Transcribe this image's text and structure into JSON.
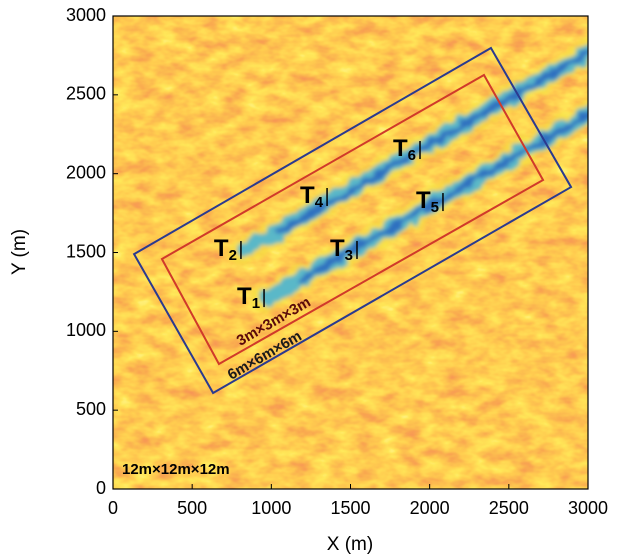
{
  "chart_data": {
    "type": "field-map",
    "xlabel": "X (m)",
    "ylabel": "Y (m)",
    "xlim": [
      0,
      3000
    ],
    "ylim": [
      0,
      3000
    ],
    "xticks": [
      0,
      500,
      1000,
      1500,
      2000,
      2500,
      3000
    ],
    "yticks": [
      0,
      500,
      1000,
      1500,
      2000,
      2500,
      3000
    ],
    "domain_label": "12m×12m×12m",
    "boxes": [
      {
        "name": "3m×3m×3m",
        "color": "#d03a2a",
        "x": [
          309,
          2343,
          2716,
          669
        ],
        "y": [
          1459,
          2626,
          1960,
          793
        ]
      },
      {
        "name": "6m×6m×6m",
        "color": "#2b3a8f",
        "x": [
          133,
          2387,
          2893,
          632
        ],
        "y": [
          1490,
          2797,
          1915,
          609
        ]
      }
    ],
    "turbines": [
      {
        "letter": "T",
        "sub": "1",
        "x": 954,
        "y": 1211
      },
      {
        "letter": "T",
        "sub": "2",
        "x": 808,
        "y": 1516
      },
      {
        "letter": "T",
        "sub": "3",
        "x": 1541,
        "y": 1516
      },
      {
        "letter": "T",
        "sub": "4",
        "x": 1352,
        "y": 1852
      },
      {
        "letter": "T",
        "sub": "5",
        "x": 2084,
        "y": 1820
      },
      {
        "letter": "T",
        "sub": "6",
        "x": 1939,
        "y": 2150
      }
    ]
  }
}
